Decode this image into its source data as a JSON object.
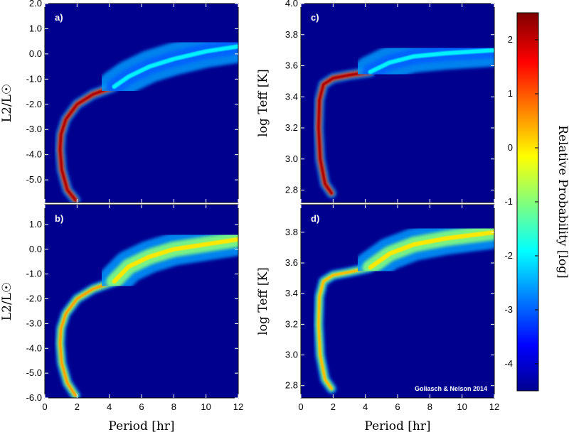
{
  "chart_data": [
    {
      "type": "heatmap",
      "panel_label": "a)",
      "xlabel": "",
      "ylabel": "L2/L☉",
      "xlim": [
        0,
        12
      ],
      "ylim": [
        -5.9,
        2.0
      ],
      "xticks": [
        0,
        2,
        4,
        6,
        8,
        10,
        12
      ],
      "yticks": [
        "2.0",
        "1.0",
        "0.0",
        "-1.0",
        "-2.0",
        "-3.0",
        "-4.0",
        "-5.0"
      ],
      "yticks_values": [
        2.0,
        1.0,
        0.0,
        -1.0,
        -2.0,
        -3.0,
        -4.0,
        -5.0
      ],
      "tracks": [
        {
          "x": [
            1.9,
            1.4,
            1.05,
            0.95,
            1.0,
            1.3,
            2.0,
            3.0,
            4.3
          ],
          "y": [
            -5.8,
            -5.4,
            -4.6,
            -3.8,
            -3.2,
            -2.6,
            -2.0,
            -1.6,
            -1.3
          ],
          "level": 2.2
        },
        {
          "x": [
            4.3,
            5.2,
            6.5,
            8.0,
            10.0,
            12.0
          ],
          "y": [
            -1.3,
            -0.9,
            -0.5,
            -0.2,
            0.1,
            0.3
          ],
          "level": -2.0
        }
      ]
    },
    {
      "type": "heatmap",
      "panel_label": "b)",
      "xlabel": "Period [hr]",
      "ylabel": "L2/L☉",
      "xlim": [
        0,
        12
      ],
      "ylim": [
        -6.0,
        1.8
      ],
      "xticks": [
        0,
        2,
        4,
        6,
        8,
        10,
        12
      ],
      "yticks": [
        "1.0",
        "0.0",
        "-1.0",
        "-2.0",
        "-3.0",
        "-4.0",
        "-5.0",
        "-6.0"
      ],
      "yticks_values": [
        1.0,
        0.0,
        -1.0,
        -2.0,
        -3.0,
        -4.0,
        -5.0,
        -6.0
      ],
      "tracks": [
        {
          "x": [
            1.9,
            1.4,
            1.05,
            0.95,
            1.0,
            1.3,
            2.0,
            3.0,
            4.3
          ],
          "y": [
            -5.9,
            -5.4,
            -4.6,
            -3.8,
            -3.2,
            -2.6,
            -2.0,
            -1.6,
            -1.3
          ],
          "level": 0.5
        },
        {
          "x": [
            4.3,
            5.2,
            6.5,
            8.0,
            10.0,
            12.0
          ],
          "y": [
            -1.3,
            -0.7,
            -0.3,
            0.0,
            0.2,
            0.4
          ],
          "level": 0.0
        }
      ]
    },
    {
      "type": "heatmap",
      "panel_label": "c)",
      "xlabel": "",
      "ylabel": "log Teff [K]",
      "xlim": [
        0,
        12
      ],
      "ylim": [
        2.72,
        4.0
      ],
      "xticks": [
        0,
        2,
        4,
        6,
        8,
        10,
        12
      ],
      "yticks": [
        "4.0",
        "3.8",
        "3.6",
        "3.4",
        "3.2",
        "3.0",
        "2.8"
      ],
      "yticks_values": [
        4.0,
        3.8,
        3.6,
        3.4,
        3.2,
        3.0,
        2.8
      ],
      "tracks": [
        {
          "x": [
            1.9,
            1.5,
            1.2,
            1.1,
            1.15,
            1.4,
            2.0,
            3.0,
            4.3
          ],
          "y": [
            2.78,
            2.84,
            3.0,
            3.2,
            3.38,
            3.48,
            3.52,
            3.54,
            3.56
          ],
          "level": 2.2
        },
        {
          "x": [
            4.3,
            5.5,
            7.0,
            9.0,
            12.0
          ],
          "y": [
            3.56,
            3.62,
            3.66,
            3.68,
            3.7
          ],
          "level": -2.0
        }
      ]
    },
    {
      "type": "heatmap",
      "panel_label": "d)",
      "xlabel": "Period [hr]",
      "ylabel": "log Teff [K]",
      "xlim": [
        0,
        12
      ],
      "ylim": [
        2.72,
        3.98
      ],
      "xticks": [
        0,
        2,
        4,
        6,
        8,
        10,
        12
      ],
      "yticks": [
        "3.8",
        "3.6",
        "3.4",
        "3.2",
        "3.0",
        "2.8"
      ],
      "yticks_values": [
        3.8,
        3.6,
        3.4,
        3.2,
        3.0,
        2.8
      ],
      "tracks": [
        {
          "x": [
            1.9,
            1.5,
            1.2,
            1.1,
            1.15,
            1.4,
            2.0,
            3.0,
            4.3
          ],
          "y": [
            2.78,
            2.84,
            3.0,
            3.2,
            3.38,
            3.48,
            3.52,
            3.54,
            3.57
          ],
          "level": 0.3
        },
        {
          "x": [
            4.3,
            5.5,
            7.0,
            9.0,
            12.0
          ],
          "y": [
            3.57,
            3.66,
            3.72,
            3.76,
            3.8
          ],
          "level": 0.0
        }
      ],
      "credit": "Goliasch & Nelson 2014"
    }
  ],
  "colorbar": {
    "label": "Relative Probability [log]",
    "min": -4.5,
    "max": 2.5,
    "ticks": [
      "2",
      "1",
      "0",
      "-1",
      "-2",
      "-3",
      "-4"
    ],
    "tick_values": [
      2,
      1,
      0,
      -1,
      -2,
      -3,
      -4
    ],
    "colormap": "jet"
  },
  "colors": {
    "background": "#00008f",
    "frame": "#000000"
  }
}
